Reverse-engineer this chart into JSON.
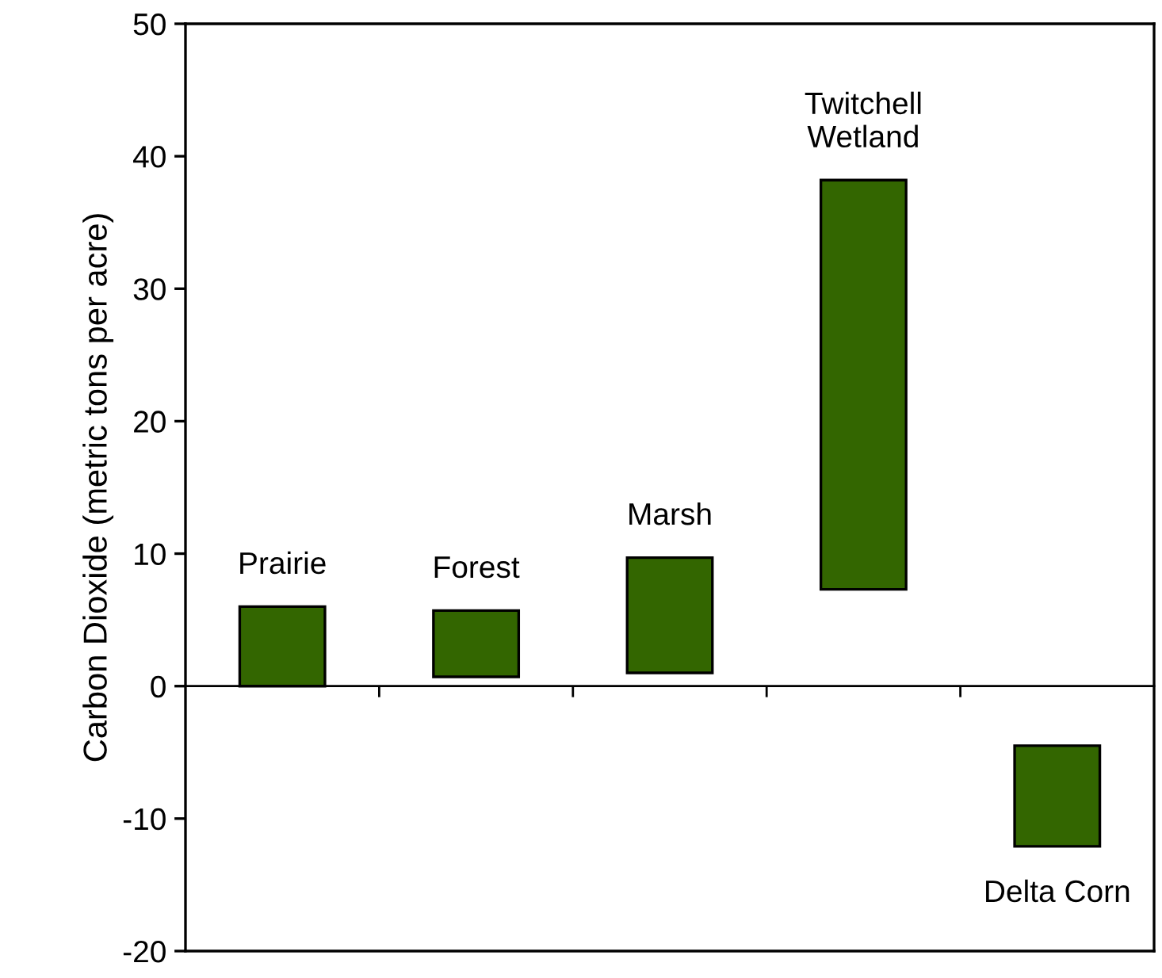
{
  "chart_data": {
    "type": "bar",
    "ylabel": "Carbon Dioxide (metric tons per acre)",
    "categories": [
      "Prairie",
      "Forest",
      "Marsh",
      "Twitchell\nWetland",
      "Delta Corn"
    ],
    "base": [
      0,
      0.7,
      1.0,
      7.3,
      -4.5
    ],
    "values": [
      6.0,
      5.0,
      8.7,
      30.9,
      -7.6
    ],
    "color": "#336600",
    "ylim": [
      -20,
      50
    ],
    "yticks": [
      -20,
      -10,
      0,
      10,
      20,
      30,
      40,
      50
    ],
    "legend": false
  }
}
